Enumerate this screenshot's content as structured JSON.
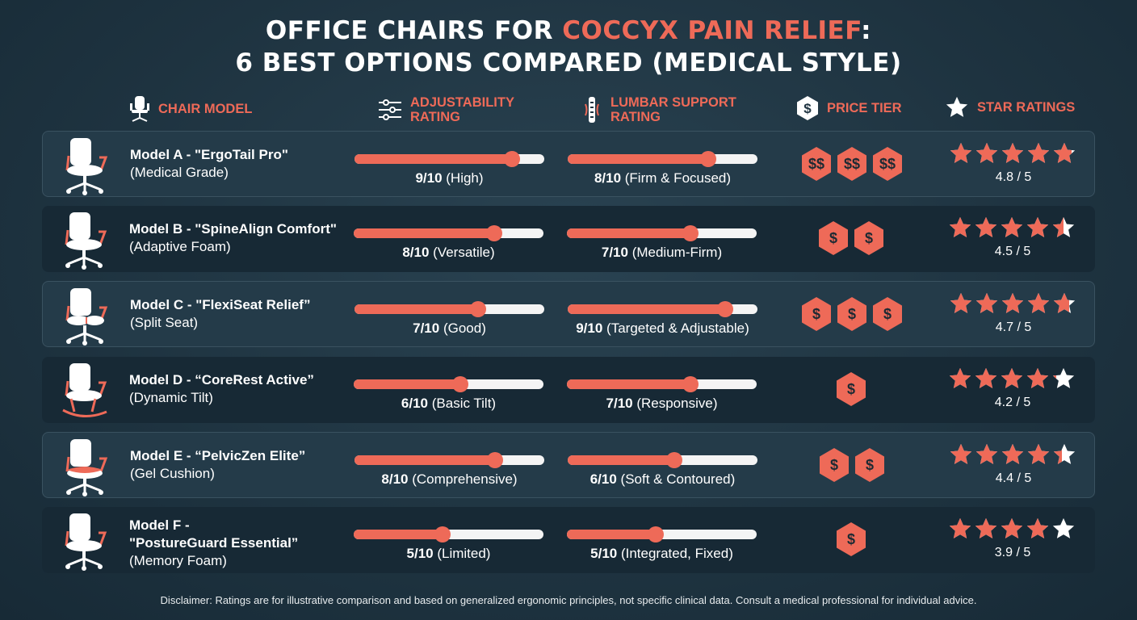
{
  "title": {
    "line1_prefix": "OFFICE CHAIRS FOR ",
    "line1_accent": "COCCYX PAIN RELIEF",
    "line1_suffix": ":",
    "line2": "6 BEST OPTIONS COMPARED (MEDICAL STYLE)"
  },
  "headers": {
    "chair_model": "CHAIR MODEL",
    "adjustability_1": "ADJUSTABILITY",
    "adjustability_2": "RATING",
    "lumbar_1": "LUMBAR SUPPORT",
    "lumbar_2": "RATING",
    "price": "PRICE TIER",
    "stars": "STAR RATINGS"
  },
  "colors": {
    "accent": "#ee6a58",
    "background": "#1e3340",
    "track": "#f4f4f4"
  },
  "rows": [
    {
      "name": "Model A - \"ErgoTail Pro\"",
      "name2": "",
      "sub": "(Medical Grade)",
      "icon": "office-chair-icon",
      "adj": {
        "value": 9,
        "score": "9/10",
        "desc": " (High)"
      },
      "lumbar": {
        "value": 8,
        "score": "8/10",
        "desc": " (Firm & Focused)"
      },
      "price": [
        "$$",
        "$$",
        "$$"
      ],
      "rating": 4.8,
      "rating_label": "4.8 / 5"
    },
    {
      "name": "Model B - \"SpineAlign Comfort\"",
      "name2": "",
      "sub": "(Adaptive Foam)",
      "icon": "office-chair-icon",
      "adj": {
        "value": 8,
        "score": "8/10",
        "desc": " (Versatile)"
      },
      "lumbar": {
        "value": 7,
        "score": "7/10",
        "desc": " (Medium-Firm)"
      },
      "price": [
        "$",
        "$"
      ],
      "rating": 4.5,
      "rating_label": "4.5 / 5"
    },
    {
      "name": "Model C - \"FlexiSeat Relief”",
      "name2": "",
      "sub": "(Split Seat)",
      "icon": "split-seat-chair-icon",
      "adj": {
        "value": 7,
        "score": "7/10",
        "desc": " (Good)"
      },
      "lumbar": {
        "value": 9,
        "score": "9/10",
        "desc": " (Targeted & Adjustable)"
      },
      "price": [
        "$",
        "$",
        "$"
      ],
      "rating": 4.7,
      "rating_label": "4.7 / 5"
    },
    {
      "name": "Model D - “CoreRest Active”",
      "name2": "",
      "sub": "(Dynamic Tilt)",
      "icon": "rocking-chair-icon",
      "adj": {
        "value": 6,
        "score": "6/10",
        "desc": " (Basic Tilt)"
      },
      "lumbar": {
        "value": 7,
        "score": "7/10",
        "desc": " (Responsive)"
      },
      "price": [
        "$"
      ],
      "rating": 4.2,
      "rating_label": "4.2 / 5"
    },
    {
      "name": "Model E - “PelvicZen Elite”",
      "name2": "",
      "sub": "(Gel Cushion)",
      "icon": "cushion-chair-icon",
      "adj": {
        "value": 8,
        "score": "8/10",
        "desc": " (Comprehensive)"
      },
      "lumbar": {
        "value": 6,
        "score": "6/10",
        "desc": " (Soft & Contoured)"
      },
      "price": [
        "$",
        "$"
      ],
      "rating": 4.4,
      "rating_label": "4.4 / 5"
    },
    {
      "name": "Model F -",
      "name2": "\"PostureGuard Essential”",
      "sub": "(Memory Foam)",
      "icon": "office-chair-icon",
      "adj": {
        "value": 5,
        "score": "5/10",
        "desc": " (Limited)"
      },
      "lumbar": {
        "value": 5,
        "score": "5/10",
        "desc": " (Integrated, Fixed)"
      },
      "price": [
        "$"
      ],
      "rating": 3.9,
      "rating_label": "3.9 / 5"
    }
  ],
  "disclaimer": "Disclaimer: Ratings are for illustrative comparison and based on generalized ergonomic principles, not specific clinical data. Consult a medical professional for individual advice."
}
